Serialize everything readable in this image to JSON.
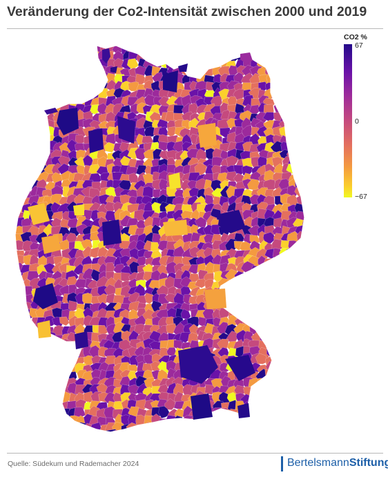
{
  "title": "Veränderung der Co2-Intensität zwischen 2000 und 2019",
  "legend": {
    "title": "CO2 %",
    "max_label": "67",
    "mid_label": "0",
    "min_label": "−67",
    "scale": {
      "min": -67,
      "mid": 0,
      "max": 67
    },
    "colors": [
      "#240a8a",
      "#6a12a8",
      "#9c2a9c",
      "#c54a7e",
      "#e4705e",
      "#f49a40",
      "#fbd02c",
      "#f0f921"
    ]
  },
  "source": "Quelle: Südekum und Rademacher 2024",
  "logo": {
    "part1": "Bertelsmann",
    "part2": "Stiftung",
    "color": "#1d5fa8"
  }
}
